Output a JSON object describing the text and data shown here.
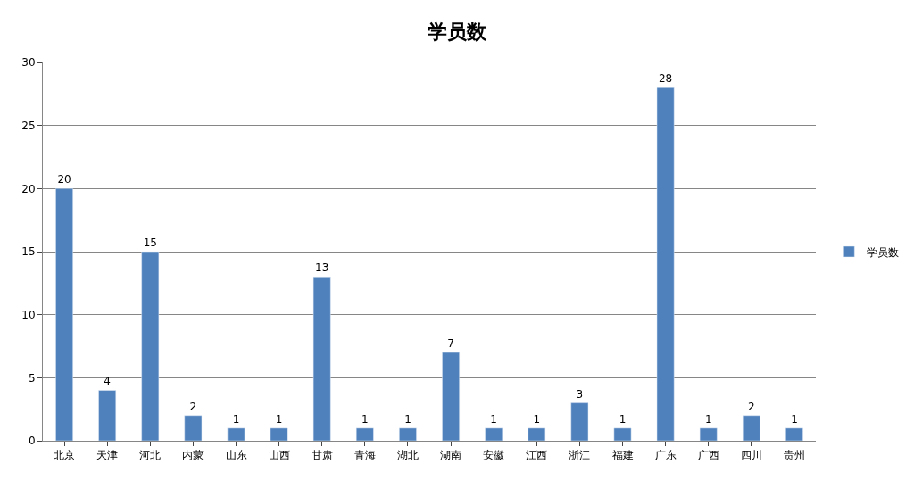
{
  "chart_data": {
    "type": "bar",
    "title": "学员数",
    "categories": [
      "北京",
      "天津",
      "河北",
      "内蒙",
      "山东",
      "山西",
      "甘肃",
      "青海",
      "湖北",
      "湖南",
      "安徽",
      "江西",
      "浙江",
      "福建",
      "广东",
      "广西",
      "四川",
      "贵州"
    ],
    "series": [
      {
        "name": "学员数",
        "color": "#4f81bd",
        "values": [
          20,
          4,
          15,
          2,
          1,
          1,
          13,
          1,
          1,
          7,
          1,
          1,
          3,
          1,
          28,
          1,
          2,
          1
        ]
      }
    ],
    "ylim": [
      0,
      30
    ],
    "yticks": [
      0,
      5,
      10,
      15,
      20,
      25,
      30
    ],
    "grid": "y",
    "legend": "right",
    "data_labels": true
  }
}
